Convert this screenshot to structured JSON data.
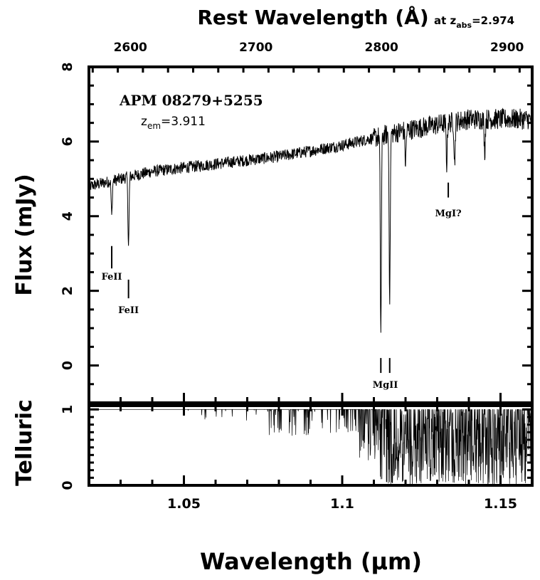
{
  "chart_data": [
    {
      "panel": "flux",
      "type": "line",
      "title": "APM 08279+5255",
      "subtitle_prefix": "z",
      "subtitle_sub": "em",
      "subtitle_value": "=3.911",
      "ylabel": "Flux (mJy)",
      "xlabel": "Wavelength (μm)",
      "top_axis_label": "Rest Wavelength (Å)",
      "top_axis_note_prefix": "at z",
      "top_axis_note_sub": "abs",
      "top_axis_note_value": "=2.974",
      "xlim": [
        1.02,
        1.16
      ],
      "ylim": [
        -1,
        8
      ],
      "top_xlim_rest": [
        2567,
        2920
      ],
      "y_ticks": [
        "0",
        "2",
        "4",
        "6",
        "8"
      ],
      "top_ticks": [
        "2600",
        "2700",
        "2800",
        "2900"
      ],
      "continuum": [
        {
          "x": 1.02,
          "y": 4.8
        },
        {
          "x": 1.04,
          "y": 5.2
        },
        {
          "x": 1.06,
          "y": 5.4
        },
        {
          "x": 1.08,
          "y": 5.6
        },
        {
          "x": 1.1,
          "y": 5.9
        },
        {
          "x": 1.12,
          "y": 6.3
        },
        {
          "x": 1.14,
          "y": 6.6
        },
        {
          "x": 1.16,
          "y": 6.6
        }
      ],
      "absorption_lines": [
        {
          "x": 1.0272,
          "depth_to": 4.0
        },
        {
          "x": 1.0325,
          "depth_to": 3.2
        },
        {
          "x": 1.1122,
          "depth_to": 0.9
        },
        {
          "x": 1.115,
          "depth_to": 1.8
        },
        {
          "x": 1.12,
          "depth_to": 5.4
        },
        {
          "x": 1.133,
          "depth_to": 5.4
        },
        {
          "x": 1.1355,
          "depth_to": 5.4
        },
        {
          "x": 1.145,
          "depth_to": 5.7
        }
      ],
      "annotations": [
        {
          "text": "FeII",
          "x": 1.0272,
          "tick_y": [
            2.6,
            3.2
          ],
          "label_y": 2.3
        },
        {
          "text": "FeII",
          "x": 1.0325,
          "tick_y": [
            1.8,
            2.3
          ],
          "label_y": 1.4
        },
        {
          "text": "MgII",
          "x": 1.1136,
          "tick_y": [
            -0.2,
            0.2
          ],
          "label_y": -0.6,
          "ticks_x": [
            1.1122,
            1.115
          ]
        },
        {
          "text": "MgI?",
          "x": 1.1335,
          "tick_y": [
            4.5,
            4.9
          ],
          "label_y": 4.0
        }
      ]
    },
    {
      "panel": "telluric",
      "type": "line",
      "ylabel": "Telluric",
      "xlim": [
        1.02,
        1.16
      ],
      "ylim": [
        0,
        1.05
      ],
      "y_ticks": [
        "0",
        "1"
      ],
      "x_ticks": [
        "1.05",
        "1.1",
        "1.15"
      ],
      "x_tick_values": [
        1.05,
        1.1,
        1.15
      ]
    }
  ]
}
